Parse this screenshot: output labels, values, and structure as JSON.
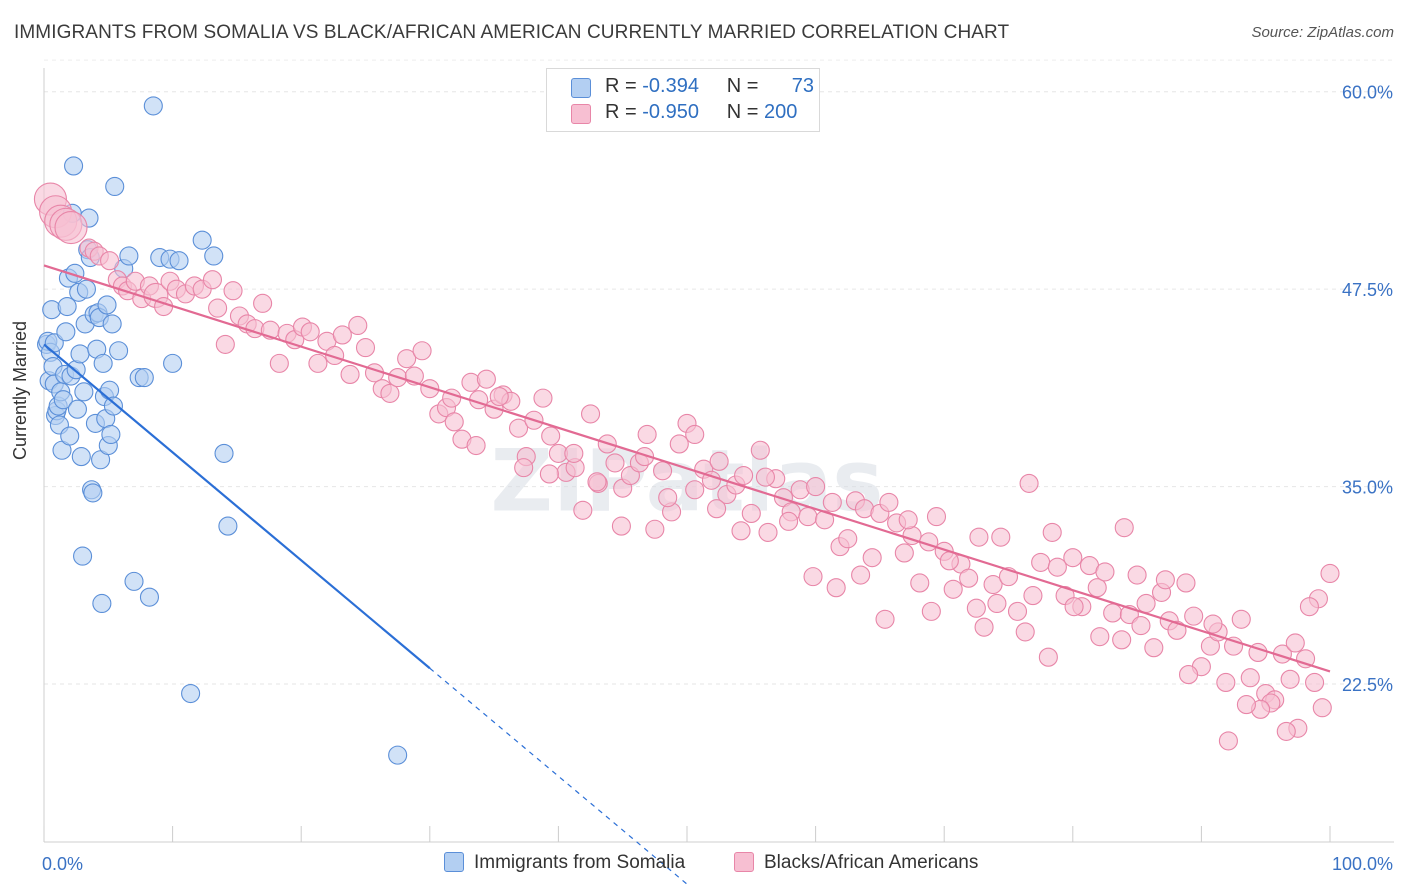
{
  "title": "IMMIGRANTS FROM SOMALIA VS BLACK/AFRICAN AMERICAN CURRENTLY MARRIED CORRELATION CHART",
  "source": "Source: ZipAtlas.com",
  "watermark": "ZIPatlas",
  "legend": {
    "rows": [
      {
        "r_label": "R =",
        "r_value": "-0.394",
        "n_label": "N =",
        "n_value": "73",
        "color": "#a9c8f0"
      },
      {
        "r_label": "R =",
        "r_value": "-0.950",
        "n_label": "N =",
        "n_value": "200",
        "color": "#f7b6cb"
      }
    ]
  },
  "chart_data": {
    "type": "scatter",
    "ylabel": "Currently Married",
    "xlabel": "",
    "x_tick_labels": [
      "0.0%",
      "100.0%"
    ],
    "y_tick_labels": [
      "22.5%",
      "35.0%",
      "47.5%",
      "60.0%"
    ],
    "xlim": [
      0,
      100
    ],
    "ylim": [
      12.5,
      61.5
    ],
    "grid": true,
    "legend_placement": "top-center",
    "series": [
      {
        "name": "Immigrants from Somalia",
        "color": "#5b8fd8",
        "fill": "#b3cff2",
        "trend": {
          "x": [
            0,
            30
          ],
          "y": [
            44.0,
            23.5
          ],
          "dashed_to_x": 50,
          "line_color": "#2b6fd6"
        },
        "points": [
          [
            0.2,
            44.0
          ],
          [
            0.3,
            44.2
          ],
          [
            0.4,
            41.7
          ],
          [
            0.5,
            43.5
          ],
          [
            0.6,
            46.2
          ],
          [
            0.7,
            42.6
          ],
          [
            0.8,
            44.1
          ],
          [
            0.8,
            41.5
          ],
          [
            0.9,
            39.5
          ],
          [
            1.0,
            39.8
          ],
          [
            1.1,
            40.1
          ],
          [
            1.2,
            38.9
          ],
          [
            1.3,
            41.0
          ],
          [
            1.4,
            37.3
          ],
          [
            1.5,
            40.5
          ],
          [
            1.6,
            42.1
          ],
          [
            1.7,
            44.8
          ],
          [
            1.8,
            46.4
          ],
          [
            1.9,
            48.2
          ],
          [
            2.0,
            38.2
          ],
          [
            2.1,
            42.0
          ],
          [
            2.2,
            52.3
          ],
          [
            2.3,
            55.3
          ],
          [
            2.4,
            48.5
          ],
          [
            2.5,
            42.4
          ],
          [
            2.6,
            39.9
          ],
          [
            2.7,
            47.3
          ],
          [
            2.8,
            43.4
          ],
          [
            2.9,
            36.9
          ],
          [
            3.0,
            30.6
          ],
          [
            3.1,
            41.0
          ],
          [
            3.2,
            45.3
          ],
          [
            3.3,
            47.5
          ],
          [
            3.4,
            50.0
          ],
          [
            3.5,
            52.0
          ],
          [
            3.6,
            49.5
          ],
          [
            3.7,
            34.8
          ],
          [
            3.8,
            34.6
          ],
          [
            3.9,
            45.9
          ],
          [
            4.0,
            39.0
          ],
          [
            4.1,
            43.7
          ],
          [
            4.2,
            46.0
          ],
          [
            4.3,
            45.7
          ],
          [
            4.4,
            36.7
          ],
          [
            4.5,
            27.6
          ],
          [
            4.6,
            42.8
          ],
          [
            4.7,
            40.7
          ],
          [
            4.8,
            39.3
          ],
          [
            4.9,
            46.5
          ],
          [
            5.0,
            37.6
          ],
          [
            5.1,
            41.1
          ],
          [
            5.2,
            38.3
          ],
          [
            5.3,
            45.3
          ],
          [
            5.4,
            40.1
          ],
          [
            5.5,
            54.0
          ],
          [
            5.8,
            43.6
          ],
          [
            6.2,
            48.8
          ],
          [
            6.6,
            49.6
          ],
          [
            7.0,
            29.0
          ],
          [
            7.4,
            41.9
          ],
          [
            7.8,
            41.9
          ],
          [
            8.2,
            28.0
          ],
          [
            8.5,
            59.1
          ],
          [
            10.0,
            42.8
          ],
          [
            9.0,
            49.5
          ],
          [
            9.8,
            49.4
          ],
          [
            10.5,
            49.3
          ],
          [
            11.4,
            21.9
          ],
          [
            12.3,
            50.6
          ],
          [
            13.2,
            49.6
          ],
          [
            14.0,
            37.1
          ],
          [
            14.3,
            32.5
          ],
          [
            27.5,
            18.0
          ]
        ]
      },
      {
        "name": "Blacks/African Americans",
        "color": "#e886a8",
        "fill": "#f7bfd2",
        "trend": {
          "x": [
            0,
            100
          ],
          "y": [
            49.0,
            23.3
          ],
          "line_color": "#e26a93"
        },
        "points": [
          [
            0.5,
            53.2
          ],
          [
            0.9,
            52.4
          ],
          [
            1.3,
            51.8
          ],
          [
            1.7,
            51.6
          ],
          [
            2.1,
            51.4
          ],
          [
            3.5,
            50.1
          ],
          [
            3.9,
            49.9
          ],
          [
            4.3,
            49.6
          ],
          [
            5.1,
            49.3
          ],
          [
            5.7,
            48.1
          ],
          [
            6.1,
            47.7
          ],
          [
            6.5,
            47.4
          ],
          [
            7.1,
            48.0
          ],
          [
            7.6,
            46.9
          ],
          [
            8.2,
            47.7
          ],
          [
            8.7,
            47.1
          ],
          [
            9.3,
            46.4
          ],
          [
            9.8,
            48.0
          ],
          [
            10.3,
            47.5
          ],
          [
            11.0,
            47.2
          ],
          [
            11.7,
            47.7
          ],
          [
            12.3,
            47.5
          ],
          [
            13.1,
            48.1
          ],
          [
            13.5,
            46.3
          ],
          [
            14.1,
            44.0
          ],
          [
            14.7,
            47.4
          ],
          [
            15.2,
            45.8
          ],
          [
            15.8,
            45.3
          ],
          [
            16.4,
            45.0
          ],
          [
            17.0,
            46.6
          ],
          [
            17.6,
            44.9
          ],
          [
            18.3,
            42.8
          ],
          [
            18.9,
            44.7
          ],
          [
            19.5,
            44.3
          ],
          [
            20.1,
            45.1
          ],
          [
            20.7,
            44.8
          ],
          [
            21.3,
            42.8
          ],
          [
            22.0,
            44.2
          ],
          [
            22.6,
            43.3
          ],
          [
            23.2,
            44.6
          ],
          [
            23.8,
            42.1
          ],
          [
            24.4,
            45.2
          ],
          [
            25.0,
            43.8
          ],
          [
            25.7,
            42.2
          ],
          [
            26.3,
            41.2
          ],
          [
            26.9,
            40.9
          ],
          [
            27.5,
            41.9
          ],
          [
            28.2,
            43.1
          ],
          [
            28.8,
            42.0
          ],
          [
            29.4,
            43.6
          ],
          [
            30.0,
            41.2
          ],
          [
            30.7,
            39.6
          ],
          [
            31.3,
            40.0
          ],
          [
            31.9,
            39.1
          ],
          [
            32.5,
            38.0
          ],
          [
            33.2,
            41.6
          ],
          [
            33.8,
            40.5
          ],
          [
            34.4,
            41.8
          ],
          [
            35.0,
            39.9
          ],
          [
            35.7,
            40.8
          ],
          [
            36.3,
            40.4
          ],
          [
            36.9,
            38.7
          ],
          [
            37.5,
            36.9
          ],
          [
            38.1,
            39.2
          ],
          [
            38.8,
            40.6
          ],
          [
            39.4,
            38.2
          ],
          [
            40.0,
            37.1
          ],
          [
            40.6,
            35.9
          ],
          [
            41.3,
            36.2
          ],
          [
            41.9,
            33.5
          ],
          [
            42.5,
            39.6
          ],
          [
            43.1,
            35.2
          ],
          [
            43.8,
            37.7
          ],
          [
            44.4,
            36.5
          ],
          [
            45.0,
            34.9
          ],
          [
            45.6,
            35.7
          ],
          [
            46.3,
            36.5
          ],
          [
            46.9,
            38.3
          ],
          [
            47.5,
            32.3
          ],
          [
            48.1,
            36.0
          ],
          [
            48.8,
            33.4
          ],
          [
            49.4,
            37.7
          ],
          [
            50.0,
            39.0
          ],
          [
            50.6,
            34.8
          ],
          [
            51.3,
            36.1
          ],
          [
            51.9,
            35.4
          ],
          [
            52.5,
            36.6
          ],
          [
            53.1,
            34.5
          ],
          [
            53.8,
            35.1
          ],
          [
            54.4,
            35.7
          ],
          [
            55.0,
            33.3
          ],
          [
            55.7,
            37.3
          ],
          [
            56.3,
            32.1
          ],
          [
            56.9,
            35.5
          ],
          [
            57.5,
            34.3
          ],
          [
            58.1,
            33.4
          ],
          [
            58.8,
            34.8
          ],
          [
            59.4,
            33.1
          ],
          [
            60.0,
            35.0
          ],
          [
            60.7,
            32.9
          ],
          [
            61.3,
            34.0
          ],
          [
            61.9,
            31.2
          ],
          [
            62.5,
            31.7
          ],
          [
            63.1,
            34.1
          ],
          [
            63.8,
            33.6
          ],
          [
            64.4,
            30.5
          ],
          [
            65.0,
            33.3
          ],
          [
            65.7,
            34.0
          ],
          [
            66.3,
            32.7
          ],
          [
            66.9,
            30.8
          ],
          [
            67.5,
            31.9
          ],
          [
            68.1,
            28.9
          ],
          [
            68.8,
            31.5
          ],
          [
            69.4,
            33.1
          ],
          [
            70.0,
            30.9
          ],
          [
            70.7,
            28.5
          ],
          [
            71.3,
            30.1
          ],
          [
            71.9,
            29.2
          ],
          [
            72.5,
            27.3
          ],
          [
            73.1,
            26.1
          ],
          [
            73.8,
            28.8
          ],
          [
            74.4,
            31.8
          ],
          [
            75.0,
            29.3
          ],
          [
            75.7,
            27.1
          ],
          [
            76.3,
            25.8
          ],
          [
            76.9,
            28.1
          ],
          [
            77.5,
            30.2
          ],
          [
            78.1,
            24.2
          ],
          [
            78.8,
            29.9
          ],
          [
            79.4,
            28.1
          ],
          [
            80.0,
            30.5
          ],
          [
            80.7,
            27.4
          ],
          [
            81.3,
            30.0
          ],
          [
            81.9,
            28.6
          ],
          [
            82.5,
            29.6
          ],
          [
            83.1,
            27.0
          ],
          [
            83.8,
            25.3
          ],
          [
            84.4,
            26.9
          ],
          [
            85.0,
            29.4
          ],
          [
            85.7,
            27.6
          ],
          [
            86.3,
            24.8
          ],
          [
            86.9,
            28.3
          ],
          [
            87.5,
            26.5
          ],
          [
            88.1,
            25.9
          ],
          [
            88.8,
            28.9
          ],
          [
            89.4,
            26.8
          ],
          [
            90.0,
            23.6
          ],
          [
            90.7,
            24.9
          ],
          [
            91.3,
            25.8
          ],
          [
            91.9,
            22.6
          ],
          [
            92.5,
            24.9
          ],
          [
            93.1,
            26.6
          ],
          [
            93.8,
            22.9
          ],
          [
            94.4,
            24.5
          ],
          [
            95.0,
            21.9
          ],
          [
            95.7,
            21.5
          ],
          [
            96.3,
            24.4
          ],
          [
            96.9,
            22.8
          ],
          [
            97.5,
            19.7
          ],
          [
            98.1,
            24.1
          ],
          [
            98.8,
            22.6
          ],
          [
            99.4,
            21.0
          ],
          [
            100.0,
            29.5
          ],
          [
            99.1,
            27.9
          ],
          [
            98.4,
            27.4
          ],
          [
            97.3,
            25.1
          ],
          [
            96.6,
            19.5
          ],
          [
            95.4,
            21.3
          ],
          [
            94.6,
            20.9
          ],
          [
            93.5,
            21.2
          ],
          [
            92.1,
            18.9
          ],
          [
            90.9,
            26.3
          ],
          [
            89.0,
            23.1
          ],
          [
            87.2,
            29.1
          ],
          [
            85.3,
            26.2
          ],
          [
            84.0,
            32.4
          ],
          [
            82.1,
            25.5
          ],
          [
            80.1,
            27.4
          ],
          [
            78.4,
            32.1
          ],
          [
            76.6,
            35.2
          ],
          [
            74.1,
            27.6
          ],
          [
            72.7,
            31.8
          ],
          [
            70.4,
            30.3
          ],
          [
            69.0,
            27.1
          ],
          [
            67.2,
            32.9
          ],
          [
            65.4,
            26.6
          ],
          [
            63.5,
            29.4
          ],
          [
            61.6,
            28.6
          ],
          [
            59.8,
            29.3
          ],
          [
            57.9,
            32.8
          ],
          [
            56.1,
            35.6
          ],
          [
            54.2,
            32.2
          ],
          [
            52.3,
            33.6
          ],
          [
            50.6,
            38.3
          ],
          [
            48.5,
            34.3
          ],
          [
            46.7,
            36.9
          ],
          [
            44.9,
            32.5
          ],
          [
            43.0,
            35.3
          ],
          [
            41.2,
            37.1
          ],
          [
            39.3,
            35.8
          ],
          [
            37.3,
            36.2
          ],
          [
            35.4,
            40.7
          ],
          [
            33.6,
            37.6
          ],
          [
            31.7,
            40.6
          ]
        ]
      }
    ]
  },
  "bottom_legend": [
    {
      "label": "Immigrants from Somalia",
      "color": "#b3cff2",
      "border": "#5b8fd8"
    },
    {
      "label": "Blacks/African Americans",
      "color": "#f7bfd2",
      "border": "#e886a8"
    }
  ]
}
